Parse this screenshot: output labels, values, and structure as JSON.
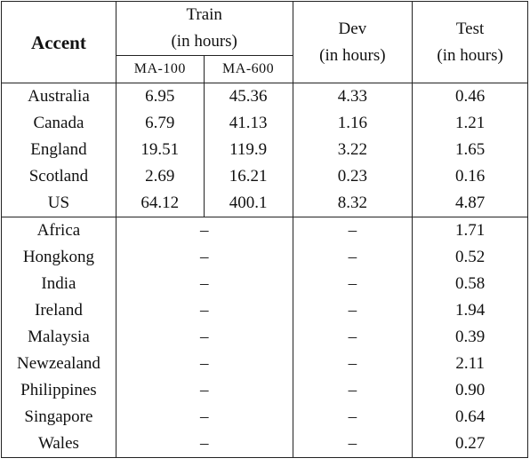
{
  "header": {
    "accent": "Accent",
    "train": [
      "Train",
      "(in hours)"
    ],
    "train_sub": [
      "MA-100",
      "MA-600"
    ],
    "dev": [
      "Dev",
      "(in hours)"
    ],
    "test": [
      "Test",
      "(in hours)"
    ]
  },
  "table": {
    "rows": [
      [
        "Australia",
        "6.95",
        "45.36",
        "4.33",
        "0.46"
      ],
      [
        "Canada",
        "6.79",
        "41.13",
        "1.16",
        "1.21"
      ],
      [
        "England",
        "19.51",
        "119.9",
        "3.22",
        "1.65"
      ],
      [
        "Scotland",
        "2.69",
        "16.21",
        "0.23",
        "0.16"
      ],
      [
        "US",
        "64.12",
        "400.1",
        "8.32",
        "4.87"
      ]
    ],
    "rows2": [
      [
        "Africa",
        "–",
        "–",
        "1.71"
      ],
      [
        "Hongkong",
        "–",
        "–",
        "0.52"
      ],
      [
        "India",
        "–",
        "–",
        "0.58"
      ],
      [
        "Ireland",
        "–",
        "–",
        "1.94"
      ],
      [
        "Malaysia",
        "–",
        "–",
        "0.39"
      ],
      [
        "Newzealand",
        "–",
        "–",
        "2.11"
      ],
      [
        "Philippines",
        "–",
        "–",
        "0.90"
      ],
      [
        "Singapore",
        "–",
        "–",
        "0.64"
      ],
      [
        "Wales",
        "–",
        "–",
        "0.27"
      ]
    ]
  }
}
